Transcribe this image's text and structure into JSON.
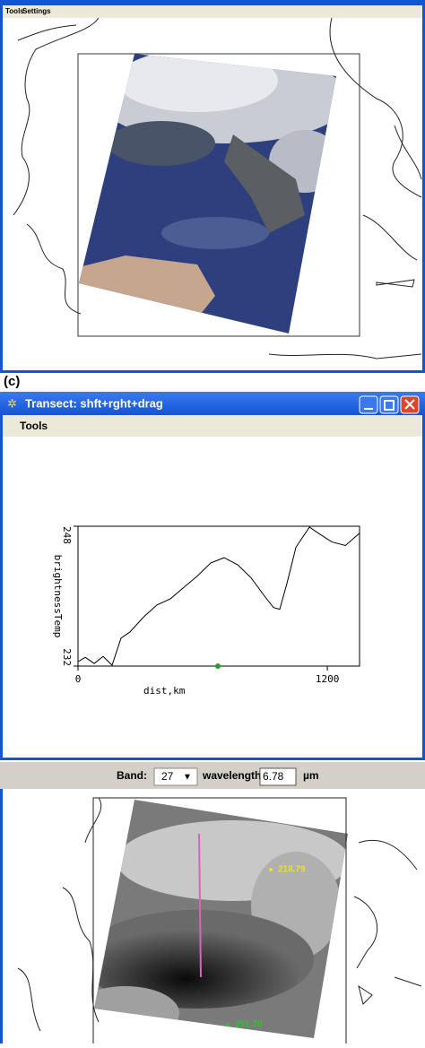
{
  "map_window": {
    "menu": [
      "Tools",
      "Settings"
    ]
  },
  "panel_label": "(c)",
  "transect_window": {
    "title": "Transect:  shft+rght+drag",
    "menu": [
      "Tools"
    ],
    "chart_data": {
      "type": "line",
      "xlabel": "dist,km",
      "ylabel": "brightnessTemp",
      "x": [
        0,
        35,
        78,
        121,
        164,
        207,
        250,
        315,
        380,
        445,
        509,
        574,
        639,
        703,
        768,
        833,
        898,
        941,
        971,
        1006,
        1049,
        1114,
        1157,
        1222,
        1287,
        1355
      ],
      "series": [
        {
          "color": "#000000",
          "values": [
            232.5,
            233.0,
            232.3,
            233.1,
            232.1,
            235.2,
            235.9,
            237.6,
            239.0,
            239.7,
            241.0,
            242.3,
            243.8,
            244.4,
            243.6,
            242.1,
            240.0,
            238.7,
            238.5,
            241.5,
            245.6,
            247.9,
            247.2,
            246.2,
            245.8,
            247.2
          ]
        }
      ],
      "xlim": [
        0,
        1355
      ],
      "ylim": [
        232,
        248
      ],
      "xticks": [
        0,
        1200
      ],
      "yticks": [
        232,
        248
      ]
    }
  },
  "band_toolbar": {
    "band_label": "Band:",
    "band": "27",
    "wavelength_label": "wavelength",
    "wavelength": "6.78",
    "unit": "µm"
  },
  "image_labels": [
    {
      "text": "218.79",
      "color": "#e8e030"
    },
    {
      "text": "251.70",
      "color": "#30c030"
    }
  ]
}
